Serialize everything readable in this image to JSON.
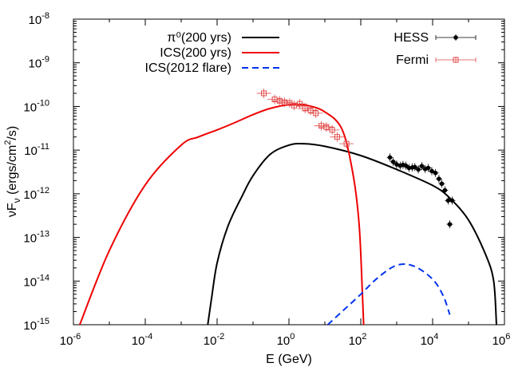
{
  "chart_data": {
    "type": "line",
    "title": "",
    "xlabel": "E (GeV)",
    "ylabel": "νF_ν (ergs/cm²/s)",
    "x_scale": "log",
    "y_scale": "log",
    "xlim": [
      1e-06,
      1000000
    ],
    "ylim": [
      1e-15,
      1e-08
    ],
    "grid": false,
    "legend_left": "top-center",
    "legend_right": "top-right",
    "x_ticks": [
      {
        "base": "10",
        "exp": "-6",
        "value": 1e-06
      },
      {
        "base": "10",
        "exp": "-4",
        "value": 0.0001
      },
      {
        "base": "10",
        "exp": "-2",
        "value": 0.01
      },
      {
        "base": "10",
        "exp": "0",
        "value": 1
      },
      {
        "base": "10",
        "exp": "2",
        "value": 100
      },
      {
        "base": "10",
        "exp": "4",
        "value": 10000
      },
      {
        "base": "10",
        "exp": "6",
        "value": 1000000
      }
    ],
    "y_ticks": [
      {
        "base": "10",
        "exp": "-15",
        "value": 1e-15
      },
      {
        "base": "10",
        "exp": "-14",
        "value": 1e-14
      },
      {
        "base": "10",
        "exp": "-13",
        "value": 1e-13
      },
      {
        "base": "10",
        "exp": "-12",
        "value": 1e-12
      },
      {
        "base": "10",
        "exp": "-11",
        "value": 1e-11
      },
      {
        "base": "10",
        "exp": "-10",
        "value": 1e-10
      },
      {
        "base": "10",
        "exp": "-9",
        "value": 1e-09
      },
      {
        "base": "10",
        "exp": "-8",
        "value": 1e-08
      }
    ],
    "series": [
      {
        "name": "π⁰(200 yrs)",
        "style": "solid",
        "color": "#000000",
        "x": [
          0.0055,
          0.007,
          0.01,
          0.02,
          0.05,
          0.1,
          0.3,
          1,
          2.5,
          10,
          100,
          1000,
          10000,
          30000,
          100000,
          300000,
          500000,
          600000
        ],
        "y": [
          1e-15,
          4e-15,
          2.6e-14,
          1.8e-13,
          9e-13,
          2.6e-12,
          8e-12,
          1.3e-11,
          1.4e-11,
          1.22e-11,
          7.5e-12,
          3.6e-12,
          1.55e-12,
          8e-13,
          2.5e-13,
          4e-14,
          1e-14,
          1e-15
        ]
      },
      {
        "name": "ICS(200 yrs)",
        "style": "solid",
        "color": "#ee0000",
        "x": [
          1.5e-06,
          1e-05,
          0.0001,
          0.001,
          0.003,
          0.01,
          0.03,
          0.1,
          0.3,
          1,
          3,
          10,
          30,
          60,
          90,
          110,
          120
        ],
        "y": [
          1e-15,
          5e-14,
          1.6e-12,
          1.3e-11,
          2e-11,
          2.9e-11,
          4.2e-11,
          6.5e-11,
          9e-11,
          1.1e-10,
          1.07e-10,
          7.5e-11,
          3e-11,
          3e-12,
          2e-13,
          6e-15,
          1e-15
        ]
      },
      {
        "name": "ICS(2012 flare)",
        "style": "dashed",
        "color": "#0033ee",
        "x": [
          12,
          30,
          100,
          300,
          1000,
          3000,
          10000,
          20000,
          30000
        ],
        "y": [
          1e-15,
          2e-15,
          5e-15,
          1.2e-14,
          2.3e-14,
          2.2e-14,
          1.1e-14,
          4.5e-15,
          1.7e-15
        ]
      },
      {
        "name": "HESS",
        "style": "points",
        "color": "#000000",
        "x": [
          650,
          800,
          1000,
          1250,
          1500,
          1800,
          2200,
          2700,
          3200,
          4000,
          5000,
          6200,
          7500,
          9500,
          12000,
          15000,
          18000,
          22000,
          27000,
          30000,
          35000
        ],
        "y": [
          6.8e-12,
          5.4e-12,
          4.7e-12,
          4.4e-12,
          4.6e-12,
          4.4e-12,
          3.9e-12,
          4e-12,
          4.1e-12,
          3.6e-12,
          4.3e-12,
          3.7e-12,
          3.9e-12,
          3.3e-12,
          3e-12,
          2.2e-12,
          1.7e-12,
          1.2e-12,
          7e-13,
          2e-13,
          7e-13
        ]
      },
      {
        "name": "Fermi",
        "style": "points",
        "color": "#e24b4b",
        "x": [
          0.2,
          0.4,
          0.55,
          0.75,
          1.05,
          1.4,
          2,
          2.8,
          4,
          5.6,
          8,
          11,
          16,
          22,
          40
        ],
        "y": [
          2e-10,
          1.45e-10,
          1.35e-10,
          1.25e-10,
          1.2e-10,
          1.05e-10,
          1.15e-10,
          9e-11,
          8.2e-11,
          7e-11,
          3.6e-11,
          3.4e-11,
          2.9e-11,
          2e-11,
          1.4e-11
        ]
      }
    ]
  }
}
